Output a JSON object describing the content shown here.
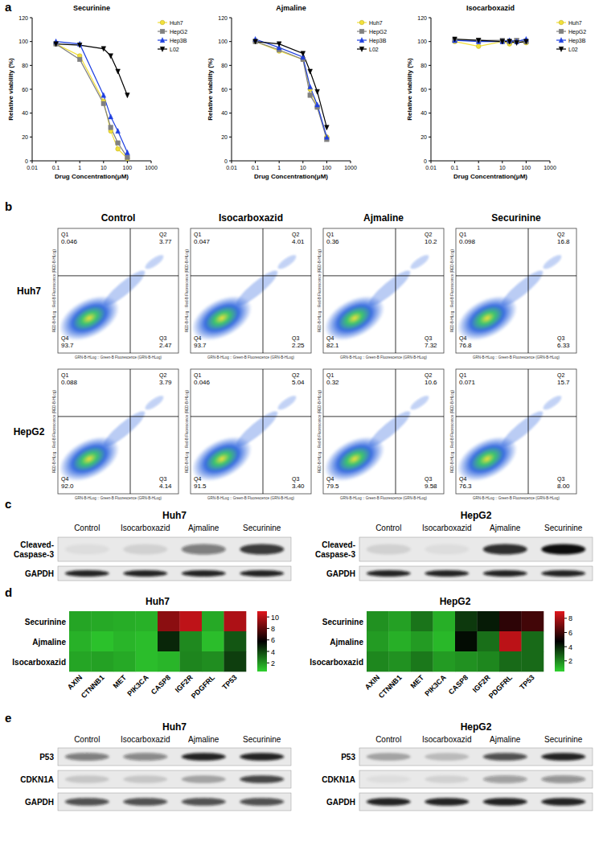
{
  "panel_labels": [
    "a",
    "b",
    "c",
    "d",
    "e"
  ],
  "chart_data": [
    {
      "type": "line",
      "title": "Securinine",
      "x_label": "Drug Concentration(μM)",
      "y_label": "Relative viability (%)",
      "log": "x",
      "legend": "right",
      "xlim": [
        0.01,
        1000
      ],
      "xticks": [
        0.01,
        0.1,
        1,
        10,
        100,
        1000
      ],
      "ylim": [
        0,
        120
      ],
      "yticks": [
        0,
        20,
        40,
        60,
        80,
        100,
        120
      ],
      "x": [
        0.1,
        1,
        10,
        20,
        40,
        100
      ],
      "series": [
        {
          "name": "Huh7",
          "color": "#f2e03a",
          "marker": "circle",
          "values": [
            98,
            88,
            50,
            25,
            10,
            2
          ]
        },
        {
          "name": "HepG2",
          "color": "#808080",
          "marker": "square",
          "values": [
            98,
            85,
            48,
            28,
            15,
            3
          ]
        },
        {
          "name": "Hep3B",
          "color": "#1e3fe0",
          "marker": "triangle",
          "values": [
            100,
            98,
            55,
            37,
            25,
            7
          ]
        },
        {
          "name": "L02",
          "color": "#000000",
          "marker": "triangle-down",
          "values": [
            98,
            97,
            94,
            88,
            75,
            55
          ]
        }
      ]
    },
    {
      "type": "line",
      "title": "Ajmaline",
      "x_label": "Drug Concentration(μM)",
      "y_label": "Relative viability (%)",
      "log": "x",
      "legend": "right",
      "xlim": [
        0.01,
        1000
      ],
      "xticks": [
        0.01,
        0.1,
        1,
        10,
        100,
        1000
      ],
      "ylim": [
        0,
        120
      ],
      "yticks": [
        0,
        20,
        40,
        60,
        80,
        100,
        120
      ],
      "x": [
        0.1,
        1,
        10,
        20,
        40,
        100
      ],
      "series": [
        {
          "name": "Huh7",
          "color": "#f2e03a",
          "marker": "circle",
          "values": [
            100,
            92,
            85,
            60,
            45,
            20
          ]
        },
        {
          "name": "HepG2",
          "color": "#808080",
          "marker": "square",
          "values": [
            100,
            93,
            85,
            55,
            45,
            18
          ]
        },
        {
          "name": "Hep3B",
          "color": "#1e3fe0",
          "marker": "triangle",
          "values": [
            102,
            95,
            87,
            62,
            47,
            20
          ]
        },
        {
          "name": "L02",
          "color": "#000000",
          "marker": "triangle-down",
          "values": [
            100,
            98,
            90,
            75,
            58,
            28
          ]
        }
      ]
    },
    {
      "type": "line",
      "title": "Isocarboxazid",
      "x_label": "Drug Concentration(μM)",
      "y_label": "Relative viability (%)",
      "log": "x",
      "legend": "right",
      "xlim": [
        0.01,
        1000
      ],
      "xticks": [
        0.01,
        0.1,
        1,
        10,
        100,
        1000
      ],
      "ylim": [
        0,
        120
      ],
      "yticks": [
        0,
        20,
        40,
        60,
        80,
        100,
        120
      ],
      "x": [
        0.1,
        1,
        10,
        20,
        40,
        100
      ],
      "series": [
        {
          "name": "Huh7",
          "color": "#f2e03a",
          "marker": "circle",
          "values": [
            100,
            96,
            100,
            98,
            100,
            99
          ]
        },
        {
          "name": "HepG2",
          "color": "#808080",
          "marker": "square",
          "values": [
            101,
            101,
            101,
            100,
            101,
            100
          ]
        },
        {
          "name": "Hep3B",
          "color": "#1e3fe0",
          "marker": "triangle",
          "values": [
            101,
            100,
            100,
            101,
            100,
            102
          ]
        },
        {
          "name": "L02",
          "color": "#000000",
          "marker": "triangle-down",
          "values": [
            102,
            101,
            100,
            100,
            99,
            100
          ]
        }
      ]
    },
    {
      "type": "heatmap",
      "title": "Huh7",
      "rows": [
        "Securinine",
        "Ajmaline",
        "Isocarboxazid"
      ],
      "columns": [
        "AXIN",
        "CTNNB1",
        "MET",
        "PIK3CA",
        "CASP8",
        "IGF2R",
        "PDGFRL",
        "TP53"
      ],
      "cells": [
        [
          1.6,
          1.5,
          1.4,
          1.3,
          9.0,
          10.2,
          1.5,
          9.8
        ],
        [
          1.3,
          0.9,
          1.2,
          1.0,
          4.8,
          2.3,
          1.0,
          3.6
        ],
        [
          1.6,
          1.7,
          1.5,
          1.0,
          1.2,
          2.4,
          2.2,
          4.2
        ]
      ],
      "colorbar": {
        "range": [
          0.5,
          11
        ],
        "ticks": [
          2,
          4,
          6,
          8,
          10
        ]
      },
      "colors": [
        "#2fd12f",
        "#000000",
        "#e0161c"
      ]
    },
    {
      "type": "heatmap",
      "title": "HepG2",
      "rows": [
        "Securinine",
        "Ajmaline",
        "Isocarboxazid"
      ],
      "columns": [
        "AXIN",
        "CTNNB1",
        "MET",
        "PIK3CA",
        "CASP8",
        "IGF2R",
        "PDGFRL",
        "TP53"
      ],
      "cells": [
        [
          1.8,
          1.5,
          2.4,
          1.2,
          3.6,
          4.2,
          5.6,
          6.0
        ],
        [
          1.6,
          1.2,
          1.6,
          1.0,
          4.5,
          2.5,
          8.3,
          2.6
        ],
        [
          2.0,
          1.8,
          2.3,
          1.6,
          1.8,
          2.0,
          2.6,
          2.6
        ]
      ],
      "colorbar": {
        "range": [
          0.5,
          9
        ],
        "ticks": [
          2,
          4,
          6,
          8
        ]
      },
      "colors": [
        "#2fd12f",
        "#000000",
        "#e0161c"
      ]
    }
  ],
  "flow": {
    "columns": [
      "Control",
      "Isocarboxazid",
      "Ajmaline",
      "Securinine"
    ],
    "x_label": "GRN-B-HLog :: Green-B Fluorescence (GRN-B-HLog)",
    "y_label": "RED-B-HLog :: Red-B Fluorescence (RED-B-HLog)",
    "rows": [
      {
        "name": "Huh7",
        "plots": [
          {
            "quadrants": [
              {
                "name": "Q1",
                "value": "0.046"
              },
              {
                "name": "Q2",
                "value": "3.77"
              },
              {
                "name": "Q3",
                "value": "2.47"
              },
              {
                "name": "Q4",
                "value": "93.7"
              }
            ]
          },
          {
            "quadrants": [
              {
                "name": "Q1",
                "value": "0.047"
              },
              {
                "name": "Q2",
                "value": "4.01"
              },
              {
                "name": "Q3",
                "value": "2.25"
              },
              {
                "name": "Q4",
                "value": "93.7"
              }
            ]
          },
          {
            "quadrants": [
              {
                "name": "Q1",
                "value": "0.36"
              },
              {
                "name": "Q2",
                "value": "10.2"
              },
              {
                "name": "Q3",
                "value": "7.32"
              },
              {
                "name": "Q4",
                "value": "82.1"
              }
            ]
          },
          {
            "quadrants": [
              {
                "name": "Q1",
                "value": "0.098"
              },
              {
                "name": "Q2",
                "value": "16.8"
              },
              {
                "name": "Q3",
                "value": "6.33"
              },
              {
                "name": "Q4",
                "value": "76.8"
              }
            ]
          }
        ]
      },
      {
        "name": "HepG2",
        "plots": [
          {
            "quadrants": [
              {
                "name": "Q1",
                "value": "0.088"
              },
              {
                "name": "Q2",
                "value": "3.79"
              },
              {
                "name": "Q3",
                "value": "4.14"
              },
              {
                "name": "Q4",
                "value": "92.0"
              }
            ]
          },
          {
            "quadrants": [
              {
                "name": "Q1",
                "value": "0.046"
              },
              {
                "name": "Q2",
                "value": "5.04"
              },
              {
                "name": "Q3",
                "value": "3.40"
              },
              {
                "name": "Q4",
                "value": "91.5"
              }
            ]
          },
          {
            "quadrants": [
              {
                "name": "Q1",
                "value": "0.32"
              },
              {
                "name": "Q2",
                "value": "10.6"
              },
              {
                "name": "Q3",
                "value": "9.58"
              },
              {
                "name": "Q4",
                "value": "79.5"
              }
            ]
          },
          {
            "quadrants": [
              {
                "name": "Q1",
                "value": "0.071"
              },
              {
                "name": "Q2",
                "value": "15.7"
              },
              {
                "name": "Q3",
                "value": "8.00"
              },
              {
                "name": "Q4",
                "value": "76.3"
              }
            ]
          }
        ]
      }
    ]
  },
  "blots": [
    {
      "groups": [
        {
          "title": "Huh7",
          "lanes": [
            "Control",
            "Isocarboxazid",
            "Ajmaline",
            "Securinine"
          ],
          "proteins": [
            {
              "label": [
                "Cleaved-",
                "Caspase-3"
              ],
              "intensity": [
                0.05,
                0.1,
                0.5,
                0.8
              ]
            },
            {
              "label": [
                "GAPDH"
              ],
              "intensity": [
                0.9,
                0.9,
                0.9,
                0.9
              ]
            }
          ]
        },
        {
          "title": "HepG2",
          "lanes": [
            "Control",
            "Isocarboxazid",
            "Ajmaline",
            "Securinine"
          ],
          "proteins": [
            {
              "label": [
                "Cleaved-",
                "Caspase-3"
              ],
              "intensity": [
                0.1,
                0.05,
                0.85,
                1.0
              ]
            },
            {
              "label": [
                "GAPDH"
              ],
              "intensity": [
                0.9,
                0.9,
                0.9,
                0.9
              ]
            }
          ]
        }
      ]
    },
    {
      "groups": [
        {
          "title": "Huh7",
          "lanes": [
            "Control",
            "Isocarboxazid",
            "Ajmaline",
            "Securinine"
          ],
          "proteins": [
            {
              "label": [
                "P53"
              ],
              "intensity": [
                0.5,
                0.45,
                0.9,
                0.9
              ]
            },
            {
              "label": [
                "CDKN1A"
              ],
              "intensity": [
                0.15,
                0.15,
                0.3,
                0.75
              ]
            },
            {
              "label": [
                "GAPDH"
              ],
              "intensity": [
                0.7,
                0.7,
                0.7,
                0.7
              ]
            }
          ]
        },
        {
          "title": "HepG2",
          "lanes": [
            "Control",
            "Isocarboxazid",
            "Ajmaline",
            "Securinine"
          ],
          "proteins": [
            {
              "label": [
                "P53"
              ],
              "intensity": [
                0.3,
                0.2,
                0.7,
                0.9
              ]
            },
            {
              "label": [
                "CDKN1A"
              ],
              "intensity": [
                0.05,
                0.1,
                0.35,
                0.4
              ]
            },
            {
              "label": [
                "GAPDH"
              ],
              "intensity": [
                0.9,
                0.9,
                0.9,
                0.9
              ]
            }
          ]
        }
      ]
    }
  ]
}
